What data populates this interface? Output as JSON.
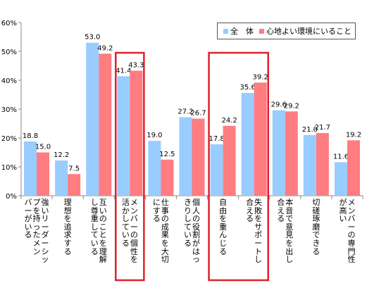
{
  "chart_data": {
    "type": "bar",
    "ylim": [
      0,
      60
    ],
    "yticks": [
      "0%",
      "10%",
      "20%",
      "30%",
      "40%",
      "50%",
      "60%"
    ],
    "categories": [
      [
        "強いリーダーシッ",
        "プを持ったメン",
        "バーがいる"
      ],
      [
        "理想を追求する"
      ],
      [
        "互いのことを理解",
        "し尊重している"
      ],
      [
        "メンバーの個性を",
        "活かしている"
      ],
      [
        "仕事の成果を大切",
        "にする"
      ],
      [
        "個人の役割がはっ",
        "きりしている"
      ],
      [
        "自由を重んじる"
      ],
      [
        "失敗をサポートし",
        "合える"
      ],
      [
        "本音で意見を出し",
        "合える"
      ],
      [
        "切磋琢磨できる"
      ],
      [
        "メンバーの専門性",
        "が高い"
      ]
    ],
    "series": [
      {
        "name": "全　体",
        "color": "#99CCFF",
        "values": [
          18.8,
          12.2,
          53.0,
          41.4,
          19.0,
          27.2,
          17.8,
          35.6,
          29.6,
          21.0,
          11.6
        ]
      },
      {
        "name": "心地よい環境にいること",
        "color": "#FF7C80",
        "values": [
          15.0,
          7.5,
          49.2,
          43.3,
          12.5,
          26.7,
          24.2,
          39.2,
          29.2,
          21.7,
          19.2
        ]
      }
    ],
    "highlight_color": "#E0202A",
    "legend": "top-right",
    "grid": false
  }
}
